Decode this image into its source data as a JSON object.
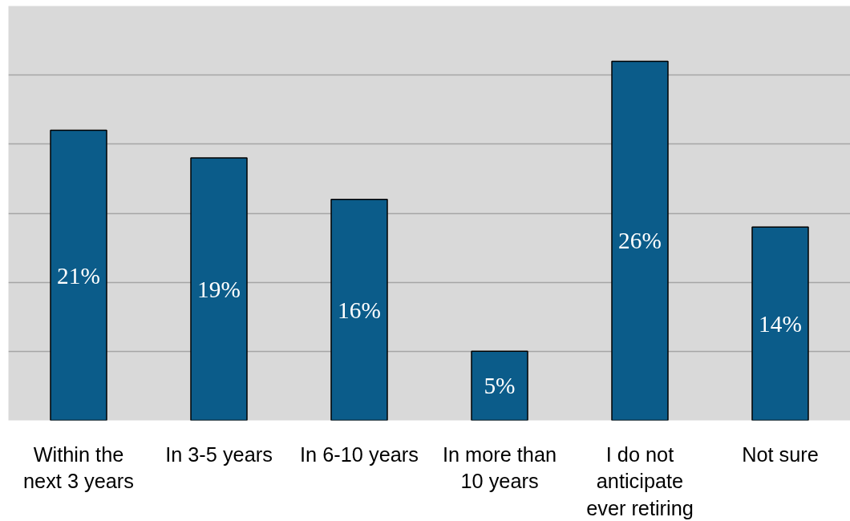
{
  "chart_data": {
    "type": "bar",
    "categories": [
      "Within the next 3 years",
      "In 3-5 years",
      "In 6-10 years",
      "In more than 10 years",
      "I do not anticipate ever retiring",
      "Not sure"
    ],
    "values": [
      21,
      19,
      16,
      5,
      26,
      14
    ],
    "value_labels": [
      "21%",
      "19%",
      "16%",
      "5%",
      "26%",
      "14%"
    ],
    "color": "#0b5c8a",
    "ylim": [
      0,
      30
    ],
    "yticks": [
      {
        "value": 0,
        "label": null
      },
      {
        "value": 5,
        "label": null
      },
      {
        "value": 10,
        "label": null
      },
      {
        "value": 15,
        "label": null
      },
      {
        "value": 20,
        "label": null
      },
      {
        "value": 25,
        "label": null
      },
      {
        "value": 30,
        "label": null
      }
    ],
    "grid": "y",
    "tick_labels": "x"
  }
}
